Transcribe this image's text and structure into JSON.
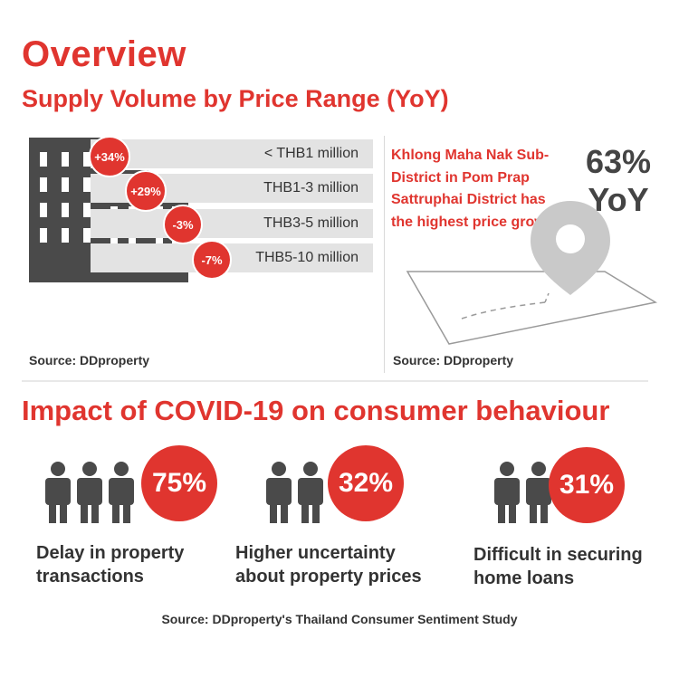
{
  "header": {
    "title": "Overview",
    "subtitle": "Supply Volume by Price Range (YoY)"
  },
  "supply": {
    "rows": [
      {
        "label": "< THB1 million",
        "change": "+34%"
      },
      {
        "label": "THB1-3 million",
        "change": "+29%"
      },
      {
        "label": "THB3-5 million",
        "change": "-3%"
      },
      {
        "label": "THB5-10 million",
        "change": "-7%"
      }
    ],
    "source": "Source: DDproperty"
  },
  "map_panel": {
    "note": "Khlong Maha Nak Sub-District in Pom Prap Sattruphai District has the highest price growth",
    "growth_value": "63%",
    "growth_unit": "YoY",
    "source": "Source: DDproperty"
  },
  "covid": {
    "title": "Impact of COVID-19 on consumer behaviour",
    "stats": [
      {
        "value": "75%",
        "label_line1": "Delay in property",
        "label_line2": "transactions"
      },
      {
        "value": "32%",
        "label_line1": "Higher uncertainty",
        "label_line2": "about property prices"
      },
      {
        "value": "31%",
        "label_line1": "Difficult in securing",
        "label_line2": "home loans"
      }
    ],
    "source": "Source: DDproperty's Thailand Consumer Sentiment Study"
  },
  "colors": {
    "accent": "#e0352f",
    "dark": "#444444",
    "bar": "#e3e3e3"
  },
  "icons": [
    "buildings-icon",
    "map-pin-icon",
    "people-icon"
  ]
}
